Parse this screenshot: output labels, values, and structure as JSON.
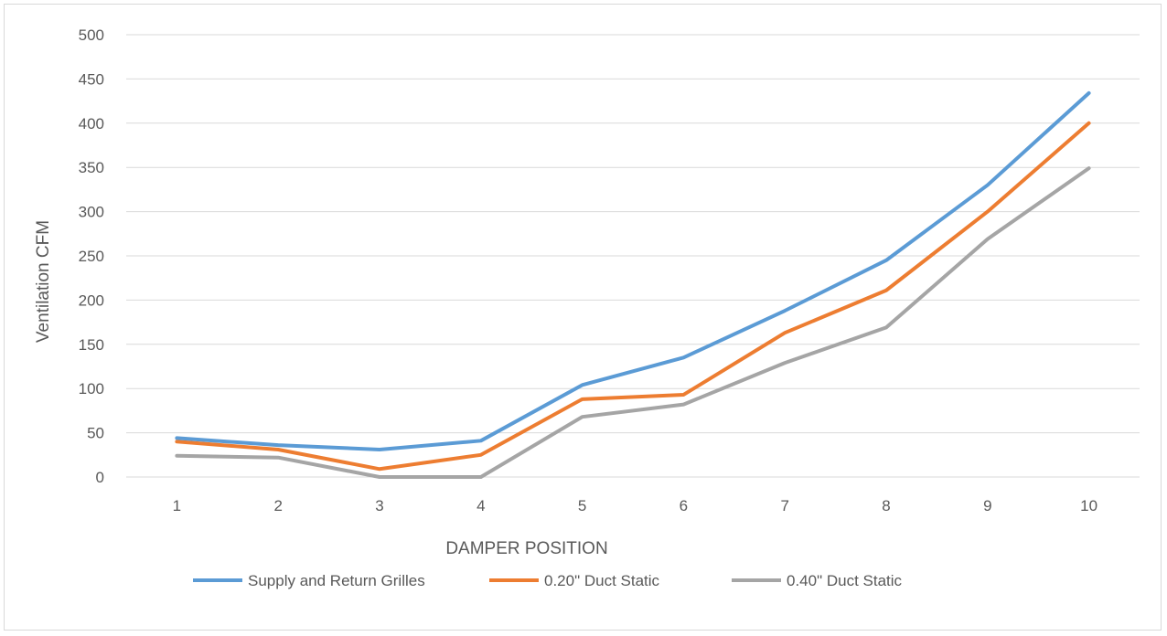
{
  "chart_data": {
    "type": "line",
    "title": "",
    "xlabel": "DAMPER POSITION",
    "ylabel": "Ventilation  CFM",
    "categories": [
      "1",
      "2",
      "3",
      "4",
      "5",
      "6",
      "7",
      "8",
      "9",
      "10"
    ],
    "ylim": [
      0,
      500
    ],
    "yticks": [
      "0",
      "50",
      "100",
      "150",
      "200",
      "250",
      "300",
      "350",
      "400",
      "450",
      "500"
    ],
    "grid": true,
    "legend_position": "bottom",
    "series": [
      {
        "name": "Supply and Return Grilles",
        "color": "#5b9bd5",
        "values": [
          44,
          36,
          31,
          41,
          104,
          135,
          188,
          245,
          330,
          434
        ]
      },
      {
        "name": "0.20\" Duct Static",
        "color": "#ed7d31",
        "values": [
          40,
          31,
          9,
          25,
          88,
          93,
          163,
          211,
          300,
          400
        ]
      },
      {
        "name": "0.40\" Duct Static",
        "color": "#a5a5a5",
        "values": [
          24,
          22,
          0,
          0,
          68,
          82,
          129,
          169,
          269,
          349
        ]
      }
    ]
  }
}
